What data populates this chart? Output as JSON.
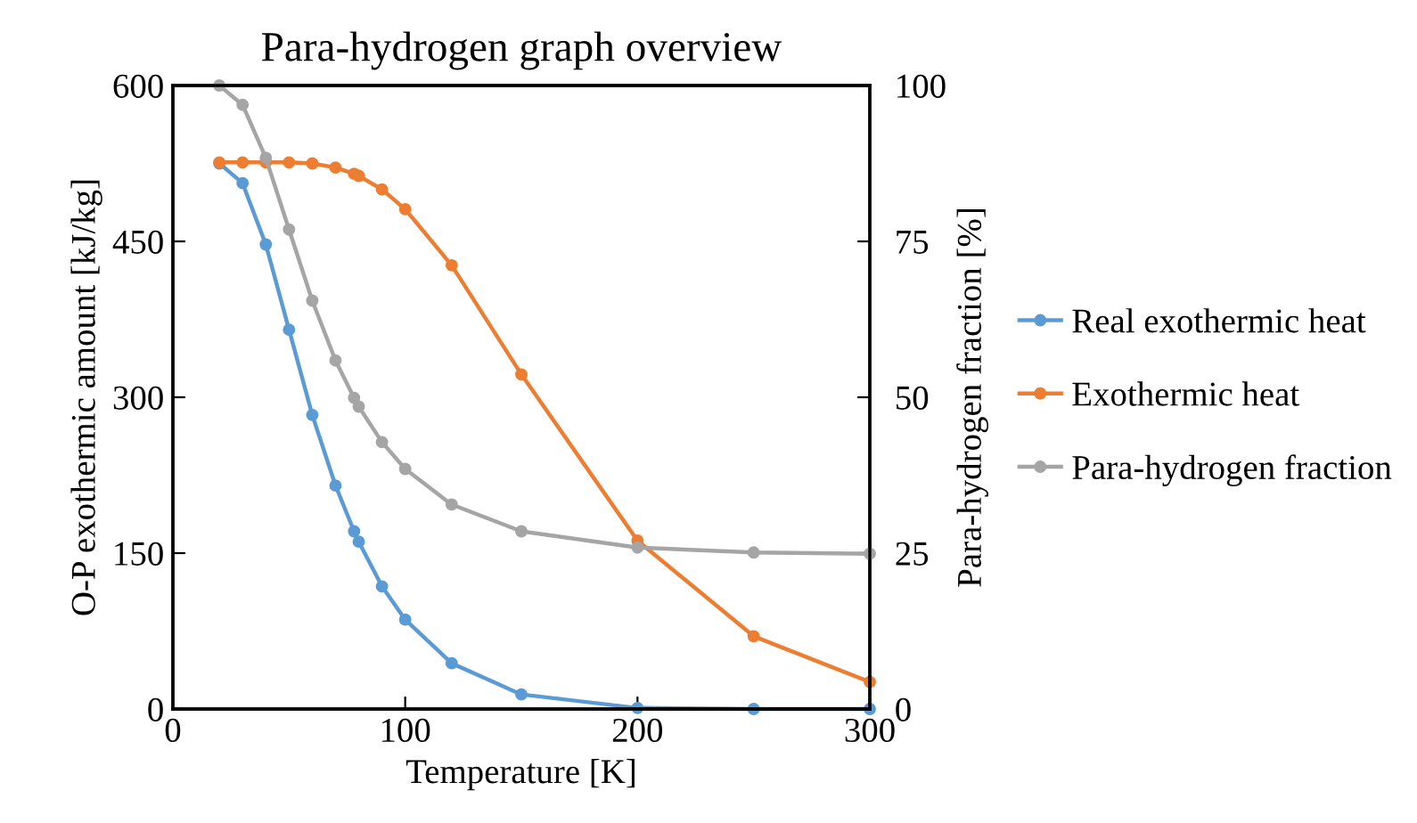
{
  "chart_data": {
    "type": "line",
    "title": "Para-hydrogen graph overview",
    "xlabel": "Temperature [K]",
    "ylabel": "O-P exothermic amount [kJ/kg]",
    "y2label": "Para-hydrogen fraction [%]",
    "x": [
      20,
      30,
      40,
      50,
      60,
      70,
      78,
      80,
      90,
      100,
      120,
      150,
      200,
      250,
      300
    ],
    "series": [
      {
        "name": "Real exothermic heat",
        "color": "#5b9bd5",
        "values": [
          525,
          506,
          447,
          365,
          283,
          215,
          171,
          161,
          118,
          86,
          44,
          14,
          1,
          0,
          0
        ]
      },
      {
        "name": "Exothermic heat",
        "color": "#ed7d31",
        "values": [
          526,
          526,
          526,
          526,
          525,
          521,
          515,
          513,
          500,
          481,
          427,
          322,
          162,
          70,
          26
        ]
      },
      {
        "name": "Para-hydrogen fraction",
        "color": "#a5a5a5",
        "axis": "y2",
        "values": [
          100,
          96.9,
          88.4,
          76.9,
          65.5,
          55.9,
          49.9,
          48.5,
          42.8,
          38.5,
          32.8,
          28.5,
          25.9,
          25.1,
          24.9
        ]
      }
    ],
    "xlim": [
      0,
      300
    ],
    "xticks": [
      0,
      100,
      200,
      300
    ],
    "ylim": [
      0,
      600
    ],
    "yticks": [
      0,
      150,
      300,
      450,
      600
    ],
    "y2lim": [
      0,
      100
    ],
    "y2ticks": [
      0,
      25,
      50,
      75,
      100
    ],
    "grid": false,
    "legend": "right",
    "marker": "circle",
    "line_style": "solid"
  }
}
